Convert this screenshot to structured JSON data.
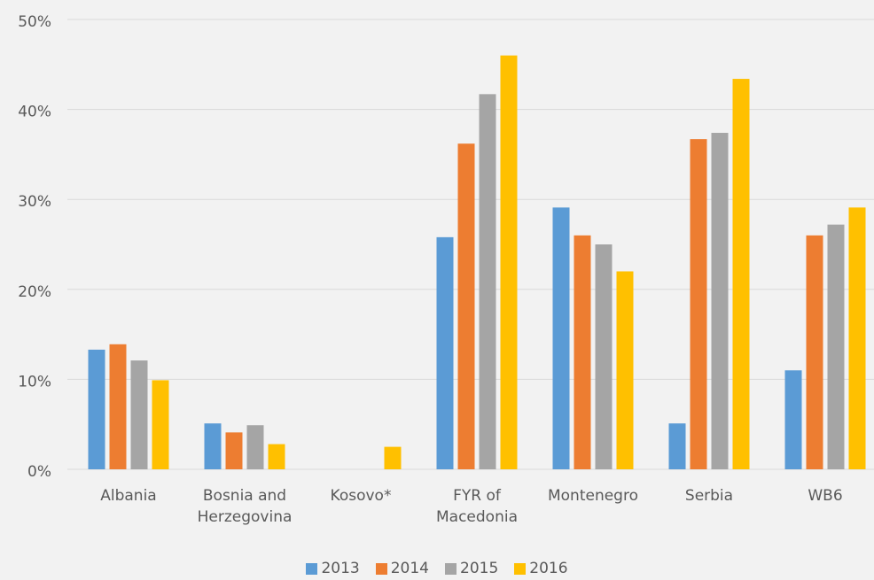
{
  "chart_data": {
    "type": "bar",
    "categories": [
      "Albania",
      "Bosnia and Herzegovina",
      "Kosovo*",
      "FYR of Macedonia",
      "Montenegro",
      "Serbia",
      "WB6"
    ],
    "series": [
      {
        "name": "2013",
        "color": "#5b9bd5",
        "values": [
          13.3,
          5.1,
          null,
          25.8,
          29.1,
          5.1,
          11.0
        ]
      },
      {
        "name": "2014",
        "color": "#ed7d31",
        "values": [
          13.9,
          4.1,
          null,
          36.2,
          26.0,
          36.7,
          26.0
        ]
      },
      {
        "name": "2015",
        "color": "#a5a5a5",
        "values": [
          12.1,
          4.9,
          null,
          41.7,
          25.0,
          37.4,
          27.2
        ]
      },
      {
        "name": "2016",
        "color": "#ffc000",
        "values": [
          9.9,
          2.8,
          2.5,
          46.0,
          22.0,
          43.4,
          29.1
        ]
      }
    ],
    "ylim": [
      0,
      50
    ],
    "yticks": [
      {
        "value": 0,
        "label": "0%"
      },
      {
        "value": 10,
        "label": "10%"
      },
      {
        "value": 20,
        "label": "20%"
      },
      {
        "value": 30,
        "label": "30%"
      },
      {
        "value": 40,
        "label": "40%"
      },
      {
        "value": 50,
        "label": "50%"
      }
    ],
    "grid": true,
    "legend": "bottom"
  }
}
